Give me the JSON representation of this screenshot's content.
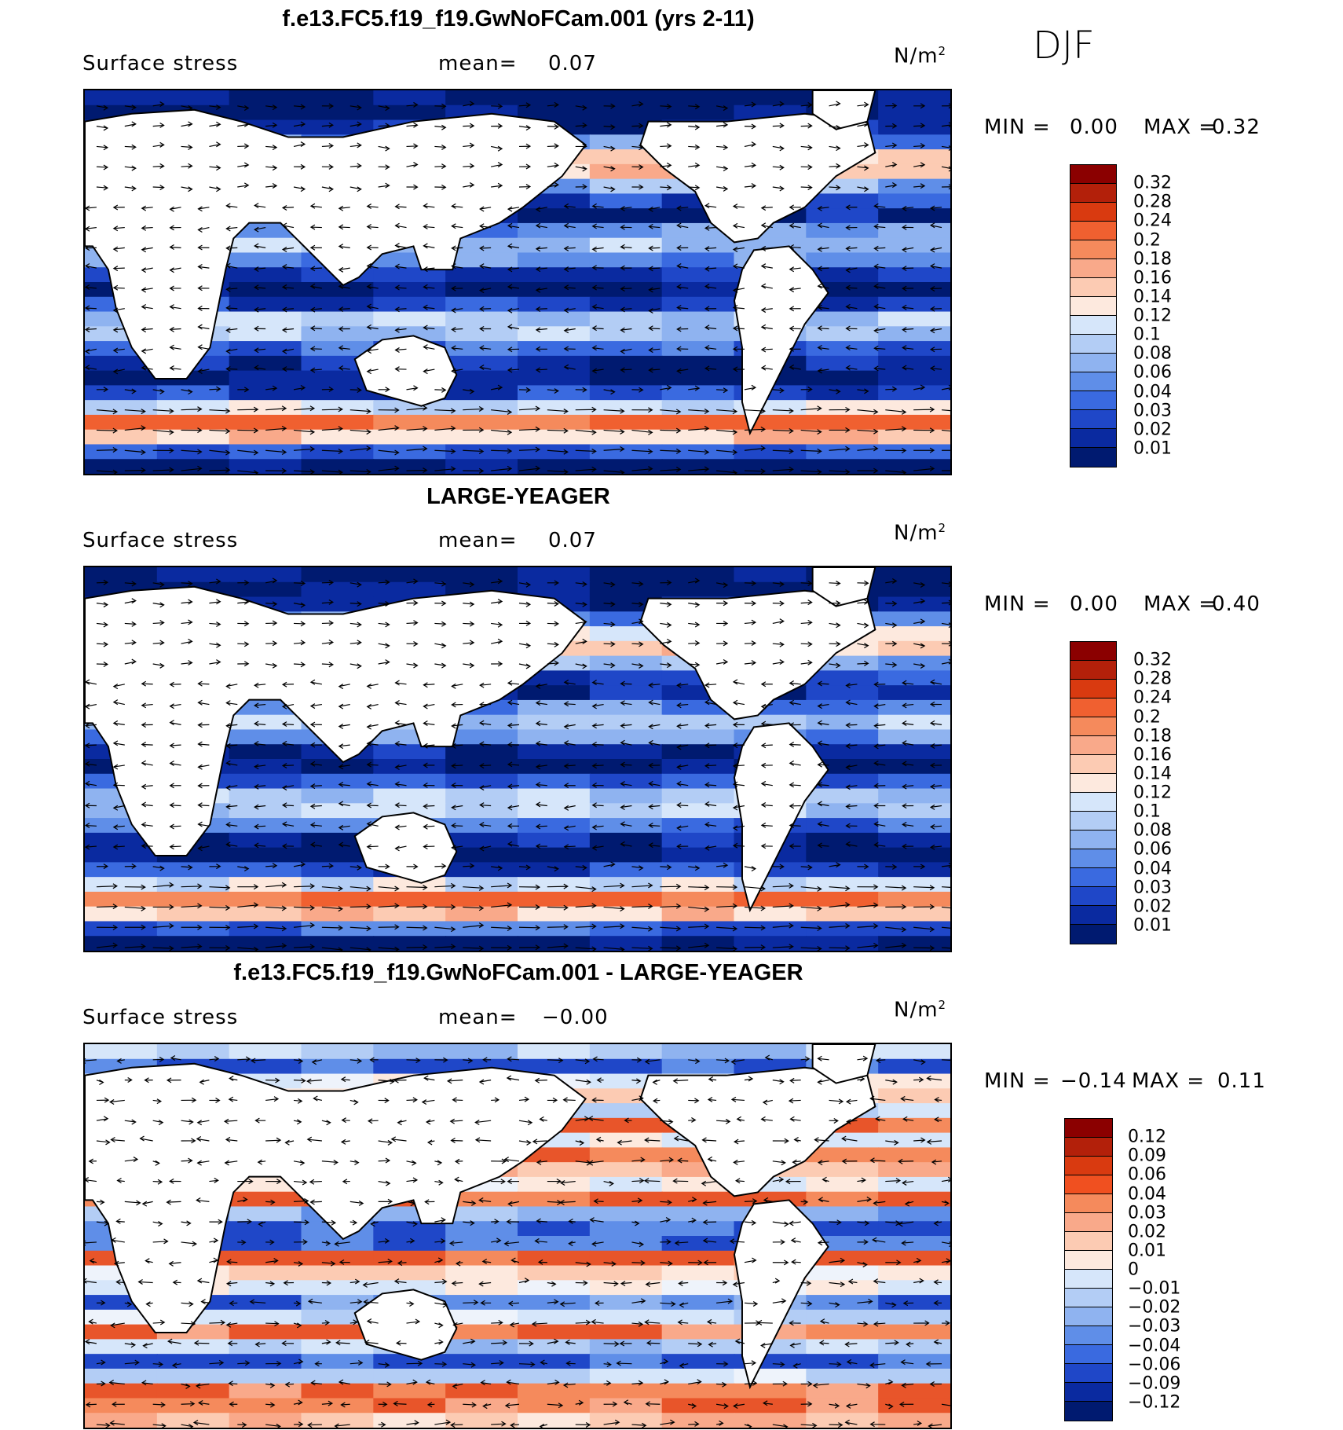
{
  "season": "DJF",
  "panels": [
    {
      "title": "f.e13.FC5.f19_f19.GwNoFCam.001 (yrs 2-11)",
      "variable": "Surface stress",
      "mean_label": "mean=",
      "mean_value": "0.07",
      "units": "N/m",
      "units_sup": "2",
      "min_label": "MIN =",
      "min_value": "0.00",
      "max_label": "MAX =",
      "max_value": "0.32",
      "colorbar_ticks": [
        "0.32",
        "0.28",
        "0.24",
        "0.2",
        "0.18",
        "0.16",
        "0.14",
        "0.12",
        "0.1",
        "0.08",
        "0.06",
        "0.04",
        "0.03",
        "0.02",
        "0.01"
      ],
      "colorbar_colors": [
        "#8b0000",
        "#b3200a",
        "#d93a10",
        "#f06030",
        "#f58a5c",
        "#f9a98a",
        "#fccbb3",
        "#fde9de",
        "#d6e6fa",
        "#b3cdf5",
        "#8fb3f0",
        "#5f8ee8",
        "#3a6ae0",
        "#1f47c8",
        "#0a2aa0",
        "#001a70"
      ],
      "map_palette": [
        "#001a70",
        "#0a2aa0",
        "#1f47c8",
        "#3a6ae0",
        "#5f8ee8",
        "#8fb3f0",
        "#b3cdf5",
        "#d6e6fa",
        "#fde9de",
        "#fccbb3",
        "#f9a98a",
        "#f58a5c",
        "#f06030"
      ]
    },
    {
      "title": "LARGE-YEAGER",
      "variable": "Surface stress",
      "mean_label": "mean=",
      "mean_value": "0.07",
      "units": "N/m",
      "units_sup": "2",
      "min_label": "MIN =",
      "min_value": "0.00",
      "max_label": "MAX =",
      "max_value": "0.40",
      "colorbar_ticks": [
        "0.32",
        "0.28",
        "0.24",
        "0.2",
        "0.18",
        "0.16",
        "0.14",
        "0.12",
        "0.1",
        "0.08",
        "0.06",
        "0.04",
        "0.03",
        "0.02",
        "0.01"
      ],
      "colorbar_colors": [
        "#8b0000",
        "#b3200a",
        "#d93a10",
        "#f06030",
        "#f58a5c",
        "#f9a98a",
        "#fccbb3",
        "#fde9de",
        "#d6e6fa",
        "#b3cdf5",
        "#8fb3f0",
        "#5f8ee8",
        "#3a6ae0",
        "#1f47c8",
        "#0a2aa0",
        "#001a70"
      ],
      "map_palette": [
        "#001a70",
        "#0a2aa0",
        "#1f47c8",
        "#3a6ae0",
        "#5f8ee8",
        "#8fb3f0",
        "#b3cdf5",
        "#d6e6fa",
        "#fde9de",
        "#fccbb3",
        "#f9a98a",
        "#f58a5c",
        "#f06030"
      ]
    },
    {
      "title": "f.e13.FC5.f19_f19.GwNoFCam.001 - LARGE-YEAGER",
      "variable": "Surface stress",
      "mean_label": "mean=",
      "mean_value": "−0.00",
      "units": "N/m",
      "units_sup": "2",
      "min_label": "MIN =",
      "min_value": "−0.14",
      "max_label": "MAX =",
      "max_value": "0.11",
      "colorbar_ticks": [
        "0.12",
        "0.09",
        "0.06",
        "0.04",
        "0.03",
        "0.02",
        "0.01",
        "0",
        "−0.01",
        "−0.02",
        "−0.03",
        "−0.04",
        "−0.06",
        "−0.09",
        "−0.12"
      ],
      "colorbar_colors": [
        "#8b0000",
        "#b3200a",
        "#d93a10",
        "#f05020",
        "#f58a5c",
        "#f9a98a",
        "#fccbb3",
        "#fde9de",
        "#d6e6fa",
        "#b3cdf5",
        "#8fb3f0",
        "#5f8ee8",
        "#3a6ae0",
        "#1f47c8",
        "#0a2aa0",
        "#001a70"
      ],
      "map_palette": [
        "#1f47c8",
        "#5f8ee8",
        "#8fb3f0",
        "#b3cdf5",
        "#d6e6fa",
        "#eef3fb",
        "#fde9de",
        "#fccbb3",
        "#f9a98a",
        "#f58a5c",
        "#e8552a"
      ]
    }
  ]
}
